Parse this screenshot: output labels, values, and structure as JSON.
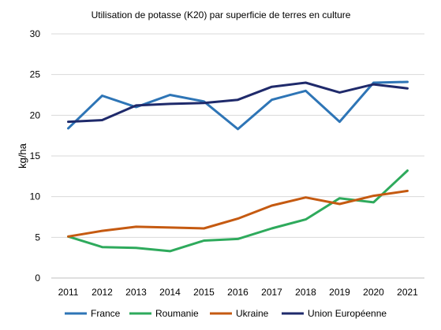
{
  "chart_data": {
    "type": "line",
    "title": "Utilisation de potasse (K20) par superficie de terres en culture",
    "xlabel": "",
    "ylabel": "kg/ha",
    "x": [
      "2011",
      "2012",
      "2013",
      "2014",
      "2015",
      "2016",
      "2017",
      "2018",
      "2019",
      "2020",
      "2021"
    ],
    "ylim": [
      0,
      30
    ],
    "yticks": [
      "0",
      "5",
      "10",
      "15",
      "20",
      "25",
      "30"
    ],
    "grid": true,
    "legend_position": "bottom",
    "series": [
      {
        "name": "France",
        "color": "#2e75b6",
        "values": [
          18.4,
          22.4,
          21.0,
          22.5,
          21.7,
          18.3,
          21.9,
          23.0,
          19.2,
          24.0,
          24.1
        ]
      },
      {
        "name": "Roumanie",
        "color": "#2eaa5c",
        "values": [
          5.1,
          3.8,
          3.7,
          3.3,
          4.6,
          4.8,
          6.1,
          7.2,
          9.8,
          9.3,
          13.2
        ]
      },
      {
        "name": "Ukraine",
        "color": "#c55a11",
        "values": [
          5.1,
          5.8,
          6.3,
          6.2,
          6.1,
          7.3,
          8.9,
          9.9,
          9.1,
          10.1,
          10.7
        ]
      },
      {
        "name": "Union Européenne",
        "color": "#1f2a6b",
        "values": [
          19.2,
          19.4,
          21.2,
          21.4,
          21.5,
          21.9,
          23.5,
          24.0,
          22.8,
          23.8,
          23.3
        ]
      }
    ]
  }
}
